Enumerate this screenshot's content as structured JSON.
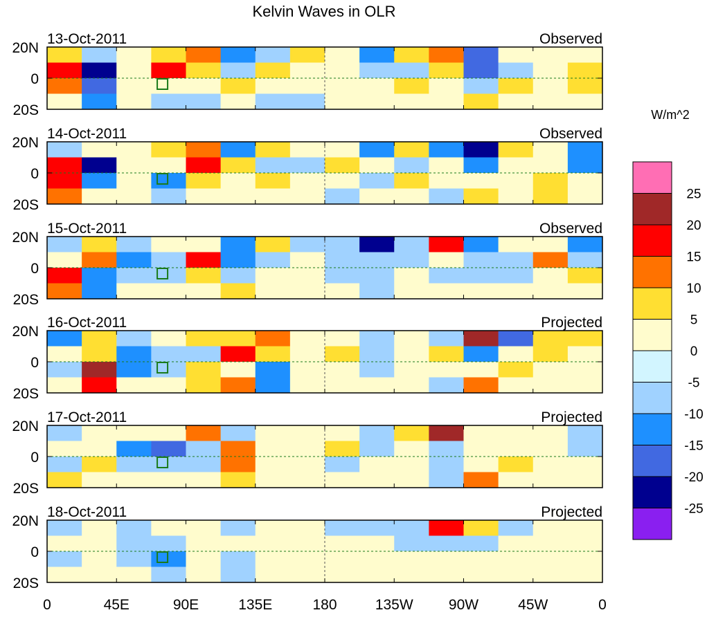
{
  "chart_data": {
    "type": "heatmap",
    "title": "Kelvin Waves in OLR",
    "colorbar": {
      "title": "W/m^2",
      "levels": [
        25,
        20,
        15,
        10,
        5,
        0,
        -5,
        -10,
        -15,
        -20,
        -25
      ],
      "colors_low_to_high": [
        "#8a1ff0",
        "#00008f",
        "#4169e1",
        "#1e90ff",
        "#a0d2ff",
        "#d2f5ff",
        "#fffccd",
        "#ffdf32",
        "#ff7200",
        "#ff0000",
        "#a02828",
        "#ff6eb4"
      ]
    },
    "x_ticks": [
      "0",
      "45E",
      "90E",
      "135E",
      "180",
      "135W",
      "90W",
      "45W",
      "0"
    ],
    "y_ticks": [
      "20N",
      "0",
      "20S"
    ],
    "lon_bins_deg_east": [
      0,
      22.5,
      45,
      67.5,
      90,
      112.5,
      135,
      157.5,
      180,
      202.5,
      225,
      247.5,
      270,
      292.5,
      315,
      337.5,
      360
    ],
    "lat_bands": [
      "20N-10N",
      "10N-0",
      "0-10S",
      "10S-20S"
    ],
    "panels": [
      {
        "date": "13-Oct-2011",
        "kind": "Observed",
        "values": [
          [
            5,
            -5,
            0,
            5,
            10,
            -10,
            -5,
            5,
            0,
            -10,
            5,
            10,
            -15,
            0,
            0,
            0
          ],
          [
            15,
            -20,
            0,
            15,
            5,
            -5,
            5,
            0,
            0,
            -5,
            -5,
            5,
            -15,
            -5,
            0,
            5
          ],
          [
            10,
            -15,
            0,
            0,
            0,
            5,
            0,
            0,
            0,
            0,
            5,
            0,
            -5,
            5,
            0,
            5
          ],
          [
            0,
            -10,
            0,
            -5,
            -5,
            0,
            -5,
            -5,
            0,
            0,
            0,
            0,
            5,
            0,
            0,
            0
          ]
        ]
      },
      {
        "date": "14-Oct-2011",
        "kind": "Observed",
        "values": [
          [
            -5,
            0,
            0,
            5,
            10,
            -10,
            5,
            0,
            0,
            -10,
            5,
            -10,
            -20,
            5,
            0,
            -10
          ],
          [
            15,
            -20,
            0,
            0,
            15,
            5,
            -5,
            -5,
            5,
            0,
            -5,
            0,
            -10,
            0,
            0,
            -10
          ],
          [
            15,
            -10,
            0,
            -10,
            5,
            0,
            5,
            0,
            0,
            -5,
            5,
            0,
            0,
            0,
            5,
            0
          ],
          [
            10,
            0,
            0,
            -5,
            0,
            0,
            0,
            0,
            -5,
            0,
            0,
            -5,
            5,
            0,
            5,
            0
          ]
        ]
      },
      {
        "date": "15-Oct-2011",
        "kind": "Observed",
        "values": [
          [
            -5,
            5,
            -5,
            0,
            0,
            -10,
            5,
            -5,
            -5,
            -20,
            -5,
            15,
            -10,
            0,
            0,
            -10
          ],
          [
            0,
            10,
            -10,
            -5,
            15,
            -10,
            -5,
            0,
            -5,
            -5,
            -5,
            0,
            -5,
            -5,
            10,
            -5
          ],
          [
            15,
            -10,
            -5,
            -5,
            5,
            -5,
            0,
            0,
            -5,
            -5,
            0,
            -5,
            -5,
            -5,
            0,
            5
          ],
          [
            10,
            -10,
            0,
            0,
            0,
            5,
            0,
            0,
            0,
            -5,
            0,
            0,
            0,
            0,
            0,
            0
          ]
        ]
      },
      {
        "date": "16-Oct-2011",
        "kind": "Projected",
        "values": [
          [
            -10,
            5,
            -5,
            0,
            5,
            5,
            10,
            0,
            0,
            -5,
            0,
            -5,
            20,
            -15,
            5,
            5
          ],
          [
            0,
            5,
            -10,
            -5,
            -5,
            15,
            5,
            0,
            5,
            -5,
            0,
            5,
            -10,
            0,
            5,
            0
          ],
          [
            -5,
            20,
            -10,
            -5,
            5,
            0,
            -10,
            0,
            0,
            -5,
            0,
            0,
            0,
            5,
            0,
            0
          ],
          [
            0,
            15,
            0,
            0,
            5,
            10,
            -10,
            0,
            0,
            0,
            0,
            -5,
            10,
            0,
            0,
            0
          ]
        ]
      },
      {
        "date": "17-Oct-2011",
        "kind": "Projected",
        "values": [
          [
            -5,
            0,
            0,
            0,
            10,
            -5,
            0,
            0,
            0,
            -5,
            5,
            20,
            0,
            0,
            0,
            -5
          ],
          [
            0,
            0,
            -10,
            -15,
            -5,
            10,
            0,
            0,
            5,
            -5,
            0,
            -5,
            0,
            0,
            0,
            -5
          ],
          [
            -5,
            5,
            -5,
            -5,
            -5,
            10,
            0,
            0,
            -5,
            0,
            0,
            -5,
            0,
            5,
            0,
            0
          ],
          [
            5,
            0,
            0,
            0,
            0,
            5,
            0,
            0,
            0,
            0,
            0,
            -5,
            10,
            0,
            0,
            0
          ]
        ]
      },
      {
        "date": "18-Oct-2011",
        "kind": "Projected",
        "values": [
          [
            -5,
            0,
            -5,
            0,
            0,
            -5,
            0,
            0,
            -5,
            -5,
            -5,
            15,
            5,
            -5,
            0,
            0
          ],
          [
            0,
            0,
            -5,
            -5,
            0,
            0,
            0,
            0,
            0,
            0,
            -5,
            -5,
            -5,
            0,
            0,
            0
          ],
          [
            -5,
            0,
            -5,
            -10,
            0,
            -5,
            0,
            0,
            0,
            0,
            0,
            0,
            0,
            0,
            0,
            0
          ],
          [
            0,
            0,
            0,
            -5,
            0,
            -5,
            0,
            0,
            0,
            0,
            0,
            0,
            0,
            0,
            0,
            0
          ]
        ]
      }
    ]
  }
}
